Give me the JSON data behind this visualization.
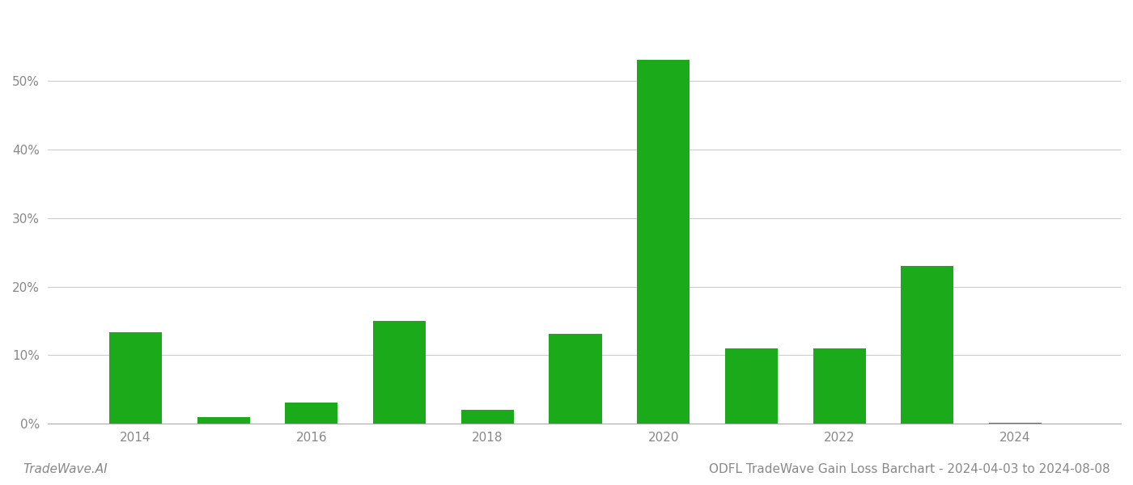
{
  "years": [
    2014,
    2015,
    2016,
    2017,
    2018,
    2019,
    2020,
    2021,
    2022,
    2023,
    2024
  ],
  "values": [
    0.133,
    0.01,
    0.031,
    0.15,
    0.02,
    0.131,
    0.53,
    0.11,
    0.11,
    0.23,
    0.002
  ],
  "bar_color": "#1aaa1a",
  "background_color": "#ffffff",
  "grid_color": "#cccccc",
  "axis_color": "#aaaaaa",
  "text_color": "#888888",
  "title": "ODFL TradeWave Gain Loss Barchart - 2024-04-03 to 2024-08-08",
  "watermark": "TradeWave.AI",
  "xlim": [
    2013.0,
    2025.2
  ],
  "ylim": [
    0,
    0.6
  ],
  "xticks": [
    2014,
    2016,
    2018,
    2020,
    2022,
    2024
  ],
  "yticks": [
    0.0,
    0.1,
    0.2,
    0.3,
    0.4,
    0.5
  ],
  "bar_width": 0.6,
  "title_fontsize": 11,
  "tick_fontsize": 11,
  "watermark_fontsize": 11
}
